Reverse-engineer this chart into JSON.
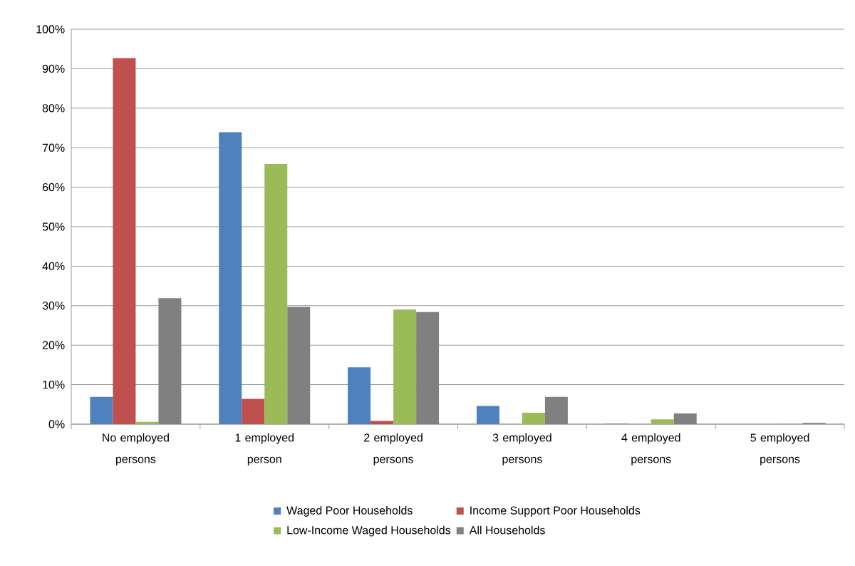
{
  "chart_data": {
    "type": "bar",
    "categories": [
      "No employed persons",
      "1 employed person",
      "2 employed persons",
      "3 employed persons",
      "4 employed persons",
      "5 employed persons"
    ],
    "series": [
      {
        "name": "Waged Poor Households",
        "color": "#4f81bd",
        "values": [
          6.9,
          73.9,
          14.4,
          4.6,
          0.1,
          0
        ]
      },
      {
        "name": "Income Support Poor Households",
        "color": "#c0504d",
        "values": [
          92.7,
          6.4,
          0.8,
          0,
          0,
          0
        ]
      },
      {
        "name": "Low-Income Waged Households",
        "color": "#9bbb59",
        "values": [
          0.6,
          65.9,
          29.0,
          2.9,
          1.2,
          0.1
        ]
      },
      {
        "name": "All Households",
        "color": "#808080",
        "values": [
          31.9,
          29.7,
          28.4,
          6.9,
          2.7,
          0.3
        ]
      }
    ],
    "ylim": [
      0,
      100
    ],
    "yticks": [
      {
        "value": 0,
        "label": "0%"
      },
      {
        "value": 10,
        "label": "10%"
      },
      {
        "value": 20,
        "label": "20%"
      },
      {
        "value": 30,
        "label": "30%"
      },
      {
        "value": 40,
        "label": "40%"
      },
      {
        "value": 50,
        "label": "50%"
      },
      {
        "value": 60,
        "label": "60%"
      },
      {
        "value": 70,
        "label": "70%"
      },
      {
        "value": 80,
        "label": "80%"
      },
      {
        "value": 90,
        "label": "90%"
      },
      {
        "value": 100,
        "label": "100%"
      }
    ],
    "grid": "y",
    "legend": "bottom"
  }
}
